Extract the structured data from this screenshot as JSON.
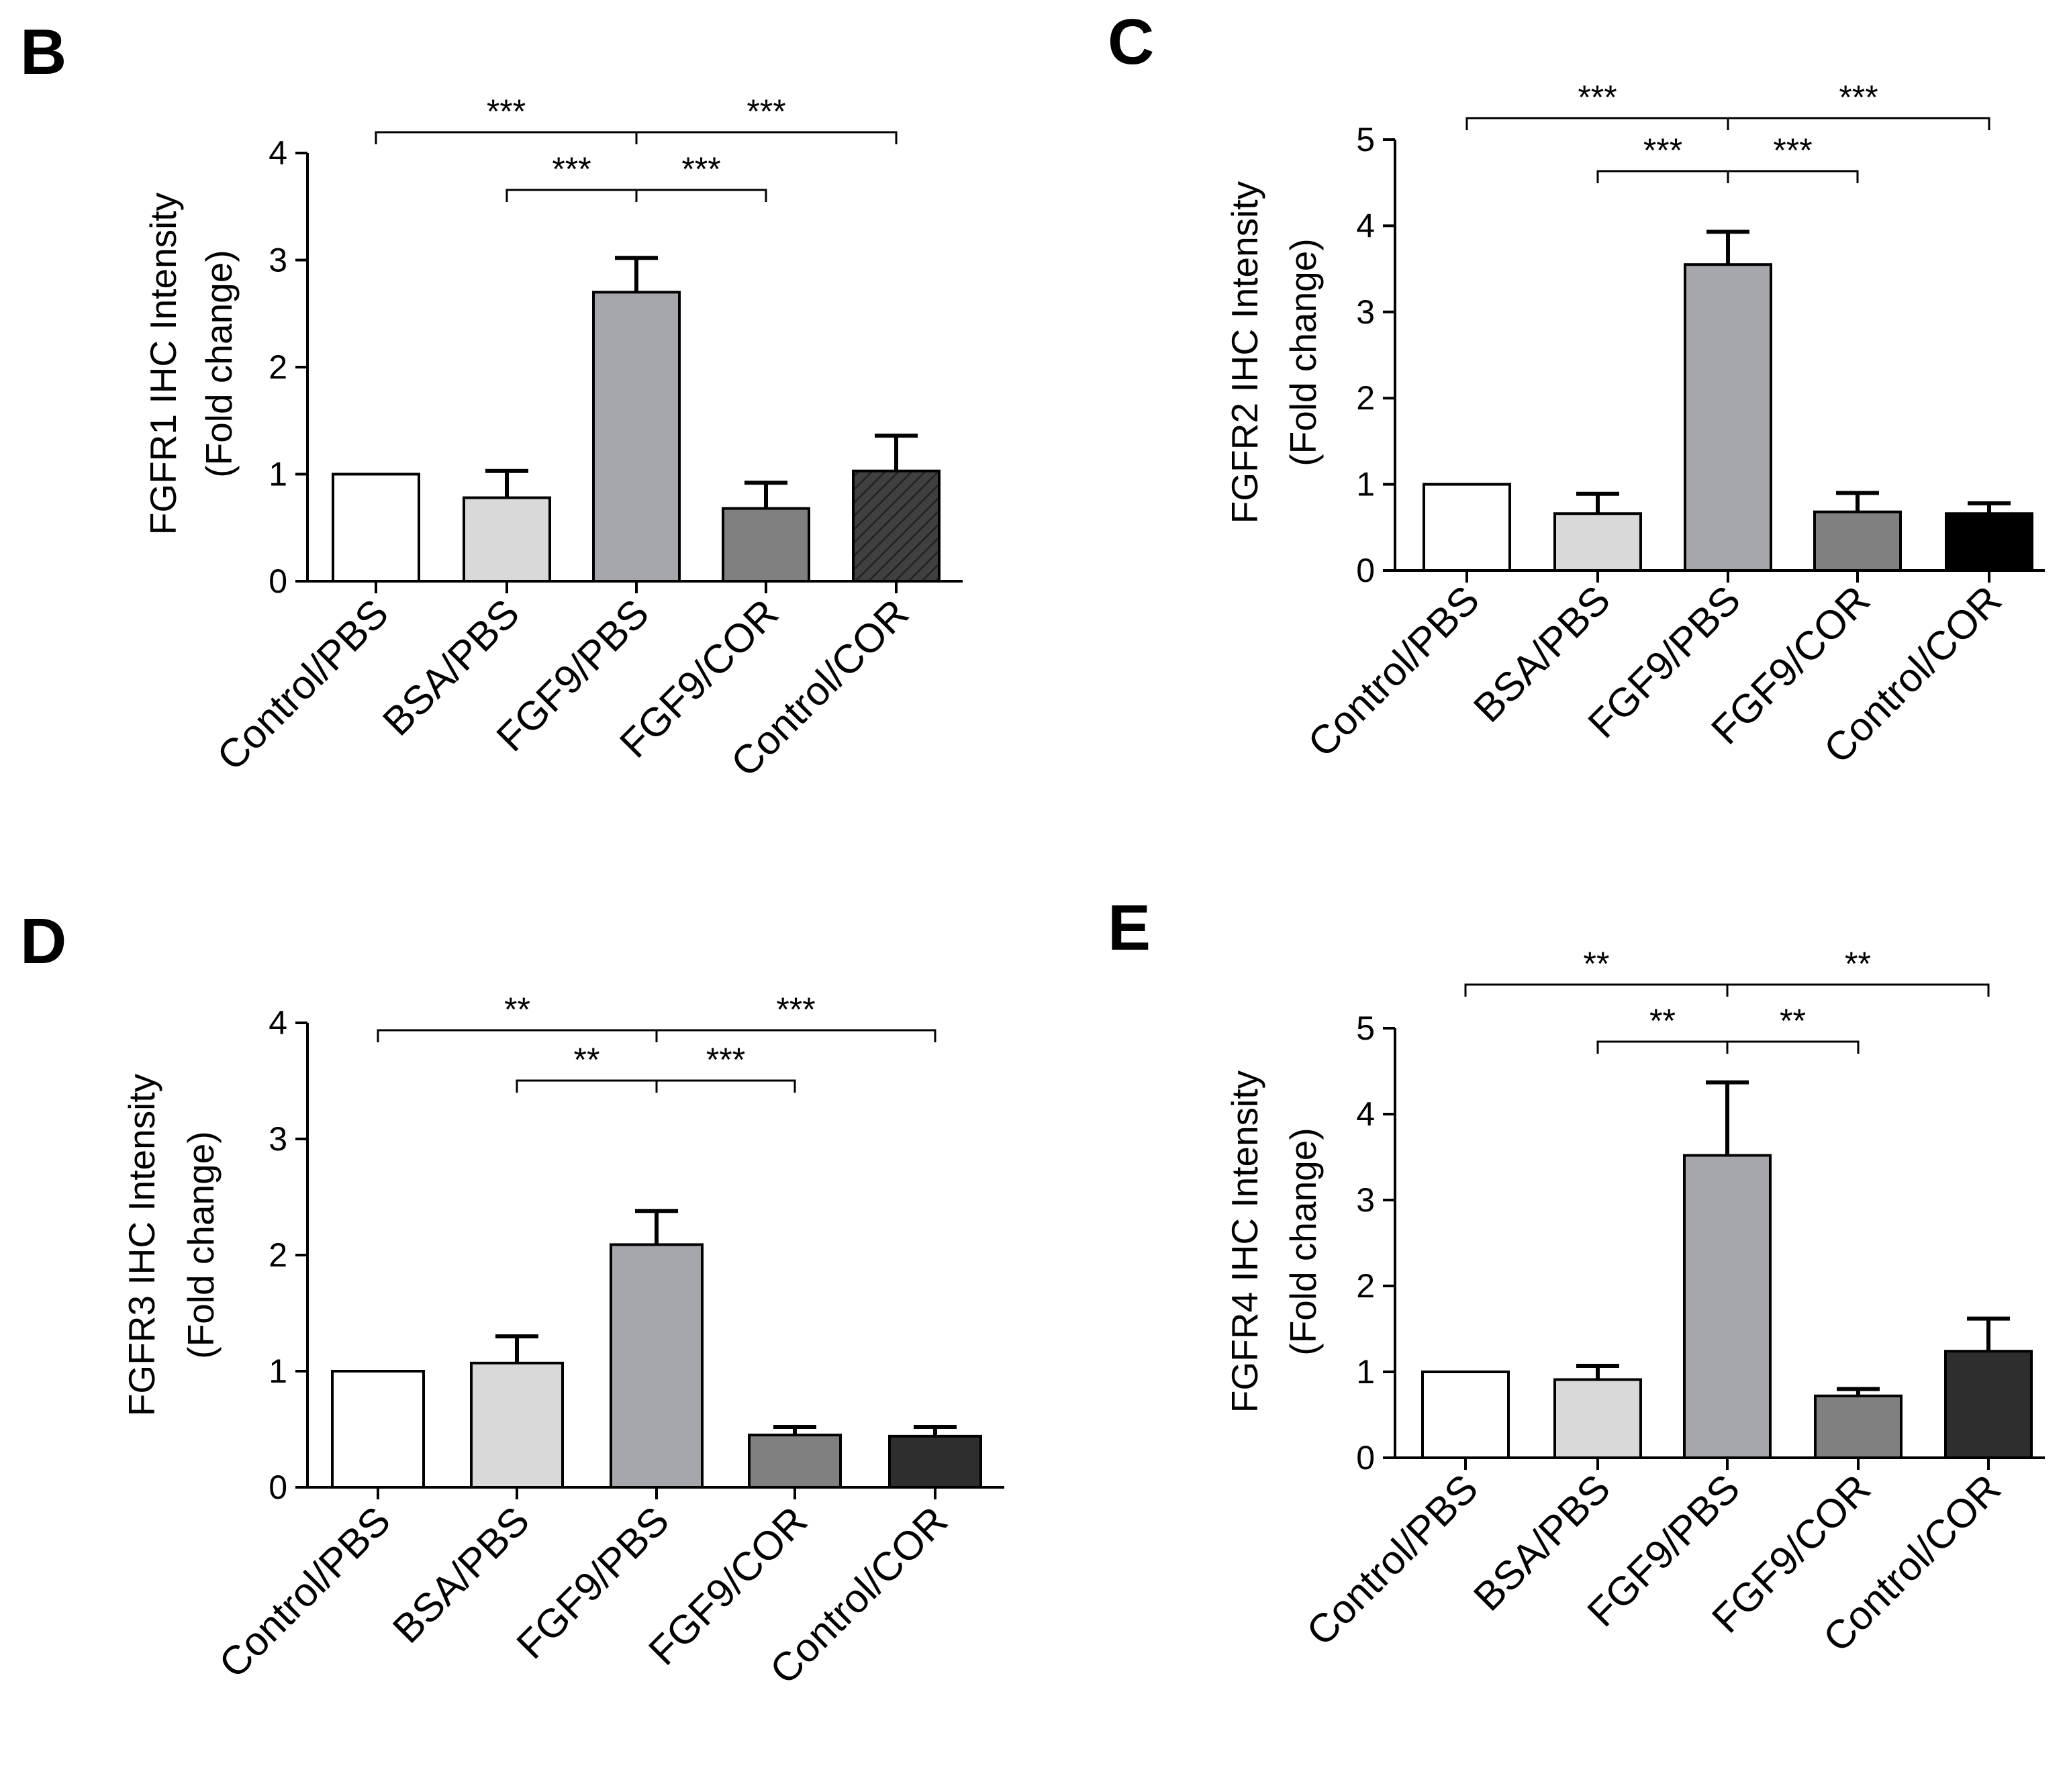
{
  "figure": {
    "categories": [
      "Control/PBS",
      "BSA/PBS",
      "FGF9/PBS",
      "FGF9/COR",
      "Control/COR"
    ],
    "colors": {
      "Control/PBS": "#ffffff",
      "BSA/PBS": "#d9d9d9",
      "FGF9/PBS": "#a6a6ad",
      "FGF9/COR": "#808080",
      "Control/COR_B": "#404040",
      "Control/COR_C": "#000000",
      "Control/COR_D": "#2e2e2e",
      "Control/COR_E": "#2e2e2e",
      "axis": "#000000"
    }
  },
  "chart_data": [
    {
      "panel": "B",
      "type": "bar",
      "title": "",
      "ylabel_line1": "FGFR1 IHC Intensity",
      "ylabel_line2": "(Fold change)",
      "xlabel": "",
      "categories": [
        "Control/PBS",
        "BSA/PBS",
        "FGF9/PBS",
        "FGF9/COR",
        "Control/COR"
      ],
      "values": [
        1.0,
        0.78,
        2.7,
        0.68,
        1.03
      ],
      "errors": [
        0,
        0.25,
        0.32,
        0.24,
        0.33
      ],
      "ylim": [
        0,
        4
      ],
      "yticks": [
        "0",
        "1",
        "2",
        "3",
        "4"
      ],
      "hatched_last": true,
      "significance": [
        {
          "from": 0,
          "to": 2,
          "label": "***",
          "level": "upper"
        },
        {
          "from": 2,
          "to": 4,
          "label": "***",
          "level": "upper"
        },
        {
          "from": 1,
          "to": 2,
          "label": "***",
          "level": "lower"
        },
        {
          "from": 2,
          "to": 3,
          "label": "***",
          "level": "lower"
        }
      ]
    },
    {
      "panel": "C",
      "type": "bar",
      "title": "",
      "ylabel_line1": "FGFR2 IHC Intensity",
      "ylabel_line2": "(Fold change)",
      "xlabel": "",
      "categories": [
        "Control/PBS",
        "BSA/PBS",
        "FGF9/PBS",
        "FGF9/COR",
        "Control/COR"
      ],
      "values": [
        1.0,
        0.66,
        3.55,
        0.68,
        0.66
      ],
      "errors": [
        0,
        0.23,
        0.38,
        0.22,
        0.12
      ],
      "ylim": [
        0,
        5
      ],
      "yticks": [
        "0",
        "1",
        "2",
        "3",
        "4",
        "5"
      ],
      "hatched_last": false,
      "significance": [
        {
          "from": 0,
          "to": 2,
          "label": "***",
          "level": "upper"
        },
        {
          "from": 2,
          "to": 4,
          "label": "***",
          "level": "upper"
        },
        {
          "from": 1,
          "to": 2,
          "label": "***",
          "level": "lower"
        },
        {
          "from": 2,
          "to": 3,
          "label": "***",
          "level": "lower"
        }
      ]
    },
    {
      "panel": "D",
      "type": "bar",
      "title": "",
      "ylabel_line1": "FGFR3 IHC Intensity",
      "ylabel_line2": "(Fold change)",
      "xlabel": "",
      "categories": [
        "Control/PBS",
        "BSA/PBS",
        "FGF9/PBS",
        "FGF9/COR",
        "Control/COR"
      ],
      "values": [
        1.0,
        1.07,
        2.09,
        0.45,
        0.44
      ],
      "errors": [
        0,
        0.23,
        0.29,
        0.07,
        0.08
      ],
      "ylim": [
        0,
        4
      ],
      "yticks": [
        "0",
        "1",
        "2",
        "3",
        "4"
      ],
      "hatched_last": false,
      "significance": [
        {
          "from": 0,
          "to": 2,
          "label": "**",
          "level": "upper"
        },
        {
          "from": 2,
          "to": 4,
          "label": "***",
          "level": "upper"
        },
        {
          "from": 1,
          "to": 2,
          "label": "**",
          "level": "lower"
        },
        {
          "from": 2,
          "to": 3,
          "label": "***",
          "level": "lower"
        }
      ]
    },
    {
      "panel": "E",
      "type": "bar",
      "title": "",
      "ylabel_line1": "FGFR4 IHC Intensity",
      "ylabel_line2": "(Fold change)",
      "xlabel": "",
      "categories": [
        "Control/PBS",
        "BSA/PBS",
        "FGF9/PBS",
        "FGF9/COR",
        "Control/COR"
      ],
      "values": [
        1.0,
        0.91,
        3.52,
        0.72,
        1.24
      ],
      "errors": [
        0,
        0.16,
        0.85,
        0.08,
        0.38
      ],
      "ylim": [
        0,
        5
      ],
      "yticks": [
        "0",
        "1",
        "2",
        "3",
        "4",
        "5"
      ],
      "hatched_last": false,
      "significance": [
        {
          "from": 0,
          "to": 2,
          "label": "**",
          "level": "upper"
        },
        {
          "from": 2,
          "to": 4,
          "label": "**",
          "level": "upper"
        },
        {
          "from": 1,
          "to": 2,
          "label": "**",
          "level": "lower"
        },
        {
          "from": 2,
          "to": 3,
          "label": "**",
          "level": "lower"
        }
      ]
    }
  ]
}
